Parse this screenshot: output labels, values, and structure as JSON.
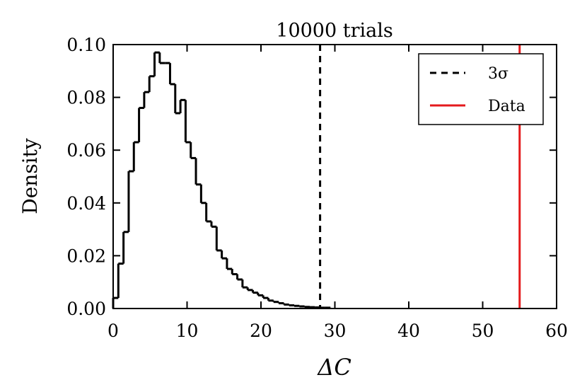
{
  "chart_data": {
    "type": "histogram",
    "title": "10000 trials",
    "xlabel": "ΔC",
    "ylabel": "Density",
    "xlim": [
      0,
      60
    ],
    "ylim": [
      0,
      0.1
    ],
    "xticks": [
      "0",
      "10",
      "20",
      "30",
      "40",
      "50",
      "60"
    ],
    "yticks": [
      "0.00",
      "0.02",
      "0.04",
      "0.06",
      "0.08",
      "0.10"
    ],
    "grid": false,
    "legend_position": "top-right",
    "histogram": {
      "bin_width": 0.7,
      "color": "#000000",
      "values": [
        0.004,
        0.017,
        0.029,
        0.052,
        0.063,
        0.076,
        0.082,
        0.088,
        0.097,
        0.093,
        0.093,
        0.085,
        0.074,
        0.079,
        0.063,
        0.057,
        0.047,
        0.04,
        0.033,
        0.031,
        0.022,
        0.019,
        0.015,
        0.013,
        0.011,
        0.008,
        0.007,
        0.006,
        0.005,
        0.004,
        0.003,
        0.0025,
        0.002,
        0.0015,
        0.0012,
        0.001,
        0.0008,
        0.0006,
        0.0005,
        0.0004,
        0.0003,
        0.0003
      ]
    },
    "reference_lines": [
      {
        "name": "3σ",
        "x": 28,
        "style": "dashed",
        "color": "#000000"
      },
      {
        "name": "Data",
        "x": 55,
        "style": "solid",
        "color": "#e41a1c"
      }
    ]
  }
}
